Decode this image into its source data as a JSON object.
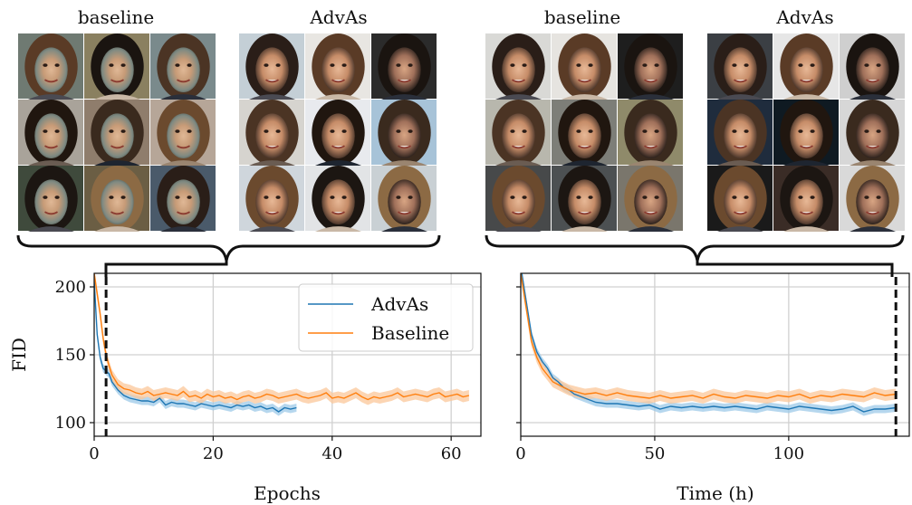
{
  "colors": {
    "advas": "#1f77b4",
    "baseline": "#ff7f0e",
    "advas_band": "#9ec9e8",
    "baseline_band": "#fbc79a",
    "grid": "#d0d0d0",
    "axis": "#111111"
  },
  "groups": {
    "left_baseline": "baseline",
    "left_advas": "AdvAs",
    "right_baseline": "baseline",
    "right_advas": "AdvAs"
  },
  "chart_data": [
    {
      "type": "line",
      "xlabel": "Epochs",
      "ylabel": "FID",
      "xlim": [
        0,
        65
      ],
      "ylim": [
        90,
        210
      ],
      "xticks": [
        0,
        20,
        40,
        60
      ],
      "yticks": [
        100,
        150,
        200
      ],
      "grid": true,
      "legend": "top-right",
      "marker_line_x": 2,
      "series": [
        {
          "name": "AdvAs",
          "x": [
            0,
            0.5,
            1,
            1.5,
            2,
            2.5,
            3,
            4,
            5,
            6,
            7,
            8,
            9,
            10,
            11,
            12,
            13,
            14,
            15,
            16,
            17,
            18,
            19,
            20,
            21,
            22,
            23,
            24,
            25,
            26,
            27,
            28,
            29,
            30,
            31,
            32,
            33,
            34
          ],
          "y": [
            205,
            165,
            148,
            140,
            138,
            136,
            130,
            124,
            120,
            118,
            117,
            116,
            116,
            115,
            118,
            113,
            115,
            114,
            114,
            113,
            112,
            114,
            113,
            112,
            113,
            112,
            111,
            113,
            112,
            113,
            111,
            112,
            110,
            111,
            108,
            111,
            110,
            111
          ],
          "band": 3
        },
        {
          "name": "Baseline",
          "x": [
            0,
            0.5,
            1,
            1.5,
            2,
            2.5,
            3,
            4,
            5,
            6,
            7,
            8,
            9,
            10,
            11,
            12,
            13,
            14,
            15,
            16,
            17,
            18,
            19,
            20,
            21,
            22,
            23,
            24,
            25,
            26,
            27,
            28,
            29,
            30,
            31,
            32,
            33,
            34,
            35,
            36,
            37,
            38,
            39,
            40,
            41,
            42,
            43,
            44,
            45,
            46,
            47,
            48,
            49,
            50,
            51,
            52,
            53,
            54,
            55,
            56,
            57,
            58,
            59,
            60,
            61,
            62,
            63
          ],
          "y": [
            210,
            195,
            180,
            162,
            150,
            142,
            135,
            128,
            125,
            124,
            122,
            121,
            123,
            120,
            121,
            122,
            121,
            120,
            123,
            119,
            120,
            118,
            121,
            119,
            120,
            118,
            119,
            117,
            119,
            120,
            118,
            119,
            121,
            120,
            118,
            119,
            120,
            121,
            119,
            118,
            119,
            120,
            122,
            118,
            119,
            118,
            120,
            122,
            119,
            117,
            119,
            118,
            119,
            120,
            122,
            119,
            120,
            121,
            120,
            119,
            121,
            122,
            119,
            120,
            121,
            119,
            120
          ],
          "band": 4
        }
      ]
    },
    {
      "type": "line",
      "xlabel": "Time (h)",
      "ylabel": "",
      "xlim": [
        0,
        145
      ],
      "ylim": [
        90,
        210
      ],
      "xticks": [
        0,
        50,
        100
      ],
      "yticks": [
        100,
        150,
        200
      ],
      "grid": true,
      "legend": "none",
      "marker_line_x": 140,
      "series": [
        {
          "name": "AdvAs",
          "x": [
            0,
            2,
            4,
            6,
            8,
            10,
            12,
            14,
            16,
            18,
            20,
            24,
            28,
            32,
            36,
            40,
            44,
            48,
            52,
            56,
            60,
            64,
            68,
            72,
            76,
            80,
            84,
            88,
            92,
            96,
            100,
            104,
            108,
            112,
            116,
            120,
            124,
            128,
            132,
            136,
            140
          ],
          "y": [
            215,
            190,
            165,
            152,
            145,
            140,
            133,
            130,
            126,
            124,
            121,
            118,
            115,
            114,
            114,
            113,
            112,
            113,
            110,
            112,
            111,
            112,
            111,
            112,
            111,
            112,
            111,
            110,
            112,
            111,
            110,
            112,
            111,
            110,
            109,
            110,
            112,
            108,
            110,
            110,
            111
          ],
          "band": 3
        },
        {
          "name": "Baseline",
          "x": [
            0,
            2,
            4,
            6,
            8,
            10,
            12,
            14,
            16,
            18,
            20,
            24,
            28,
            32,
            36,
            40,
            44,
            48,
            52,
            56,
            60,
            64,
            68,
            72,
            76,
            80,
            84,
            88,
            92,
            96,
            100,
            104,
            108,
            112,
            116,
            120,
            124,
            128,
            132,
            136,
            140
          ],
          "y": [
            210,
            185,
            160,
            148,
            140,
            135,
            130,
            128,
            126,
            124,
            123,
            121,
            122,
            120,
            122,
            120,
            119,
            118,
            120,
            118,
            119,
            120,
            118,
            121,
            119,
            118,
            120,
            119,
            118,
            120,
            119,
            121,
            118,
            120,
            119,
            121,
            120,
            119,
            122,
            120,
            121
          ],
          "band": 4
        }
      ]
    }
  ]
}
